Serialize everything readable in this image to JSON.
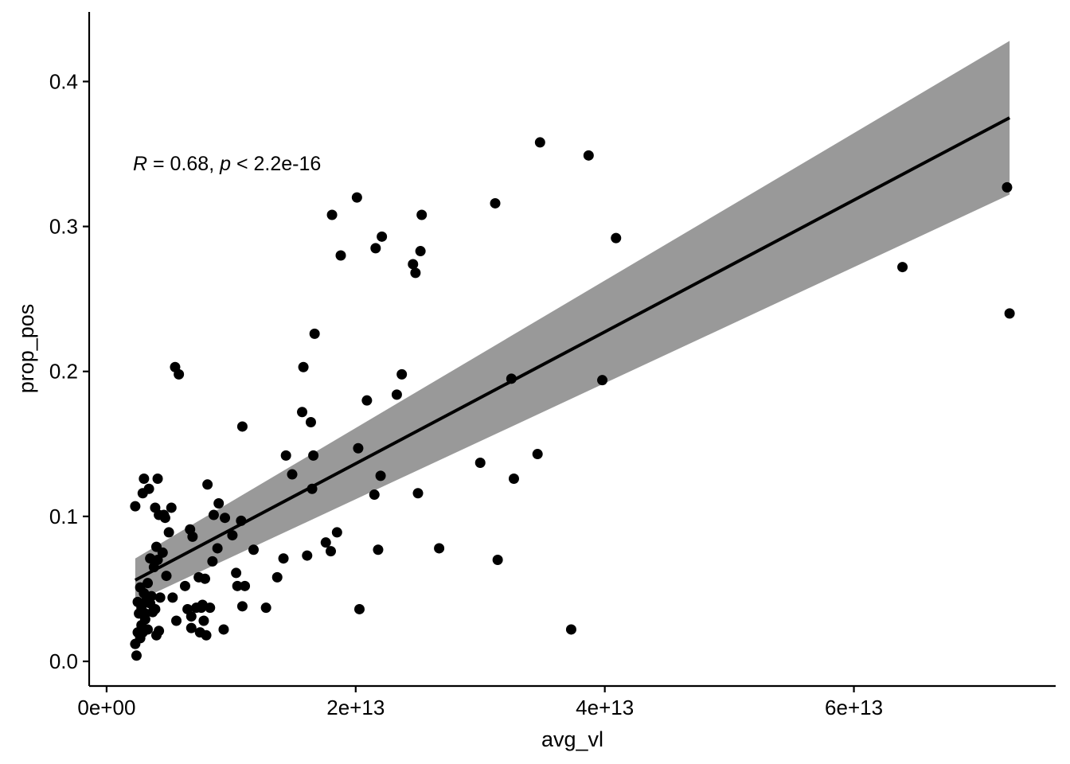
{
  "chart_data": {
    "type": "scatter",
    "xlabel": "avg_vl",
    "ylabel": "prop_pos",
    "xlim": [
      -1400000000000.0,
      76200000000000.0
    ],
    "ylim": [
      -0.017,
      0.448
    ],
    "x_ticks": [
      0,
      20000000000000.0,
      40000000000000.0,
      60000000000000.0
    ],
    "x_tick_labels": [
      "0e+00",
      "2e+13",
      "4e+13",
      "6e+13"
    ],
    "y_ticks": [
      0.0,
      0.1,
      0.2,
      0.3,
      0.4
    ],
    "y_tick_labels": [
      "0.0",
      "0.1",
      "0.2",
      "0.3",
      "0.4"
    ],
    "annotation": {
      "r_symbol": "R",
      "r_text": " = 0.68, ",
      "p_symbol": "p",
      "p_text": " < 2.2e-16"
    },
    "regression": {
      "line": [
        [
          2300000000000.0,
          0.056
        ],
        [
          72500000000000.0,
          0.375
        ]
      ],
      "ci": {
        "x": [
          2300000000000.0,
          72500000000000.0
        ],
        "upper": [
          0.071,
          0.428
        ],
        "lower": [
          0.041,
          0.322
        ]
      }
    },
    "points": [
      [
        2300000000000.0,
        0.107
      ],
      [
        2300000000000.0,
        0.012
      ],
      [
        2400000000000.0,
        0.004
      ],
      [
        2500000000000.0,
        0.02
      ],
      [
        2500000000000.0,
        0.041
      ],
      [
        2600000000000.0,
        0.033
      ],
      [
        2700000000000.0,
        0.051
      ],
      [
        2700000000000.0,
        0.016
      ],
      [
        2800000000000.0,
        0.025
      ],
      [
        2800000000000.0,
        0.037
      ],
      [
        2900000000000.0,
        0.116
      ],
      [
        2900000000000.0,
        0.02
      ],
      [
        3000000000000.0,
        0.047
      ],
      [
        3000000000000.0,
        0.126
      ],
      [
        3100000000000.0,
        0.033
      ],
      [
        3100000000000.0,
        0.029
      ],
      [
        3200000000000.0,
        0.042
      ],
      [
        3300000000000.0,
        0.022
      ],
      [
        3300000000000.0,
        0.054
      ],
      [
        3400000000000.0,
        0.119
      ],
      [
        3500000000000.0,
        0.071
      ],
      [
        3500000000000.0,
        0.04
      ],
      [
        3600000000000.0,
        0.045
      ],
      [
        3700000000000.0,
        0.034
      ],
      [
        3800000000000.0,
        0.065
      ],
      [
        3900000000000.0,
        0.106
      ],
      [
        3900000000000.0,
        0.036
      ],
      [
        4000000000000.0,
        0.018
      ],
      [
        4000000000000.0,
        0.079
      ],
      [
        4100000000000.0,
        0.126
      ],
      [
        4100000000000.0,
        0.07
      ],
      [
        4200000000000.0,
        0.101
      ],
      [
        4200000000000.0,
        0.021
      ],
      [
        4300000000000.0,
        0.044
      ],
      [
        4500000000000.0,
        0.075
      ],
      [
        4600000000000.0,
        0.101
      ],
      [
        4700000000000.0,
        0.099
      ],
      [
        4800000000000.0,
        0.059
      ],
      [
        5000000000000.0,
        0.089
      ],
      [
        5200000000000.0,
        0.106
      ],
      [
        5300000000000.0,
        0.044
      ],
      [
        5500000000000.0,
        0.203
      ],
      [
        5600000000000.0,
        0.028
      ],
      [
        5800000000000.0,
        0.198
      ],
      [
        6300000000000.0,
        0.052
      ],
      [
        6500000000000.0,
        0.036
      ],
      [
        6700000000000.0,
        0.091
      ],
      [
        6800000000000.0,
        0.023
      ],
      [
        6800000000000.0,
        0.031
      ],
      [
        6900000000000.0,
        0.086
      ],
      [
        7200000000000.0,
        0.037
      ],
      [
        7400000000000.0,
        0.058
      ],
      [
        7500000000000.0,
        0.02
      ],
      [
        7600000000000.0,
        0.037
      ],
      [
        7700000000000.0,
        0.039
      ],
      [
        7800000000000.0,
        0.028
      ],
      [
        7900000000000.0,
        0.057
      ],
      [
        8000000000000.0,
        0.018
      ],
      [
        8100000000000.0,
        0.122
      ],
      [
        8300000000000.0,
        0.037
      ],
      [
        8500000000000.0,
        0.069
      ],
      [
        8600000000000.0,
        0.101
      ],
      [
        8900000000000.0,
        0.078
      ],
      [
        9000000000000.0,
        0.109
      ],
      [
        9400000000000.0,
        0.022
      ],
      [
        9500000000000.0,
        0.099
      ],
      [
        10100000000000.0,
        0.087
      ],
      [
        10400000000000.0,
        0.061
      ],
      [
        10500000000000.0,
        0.052
      ],
      [
        10800000000000.0,
        0.097
      ],
      [
        10900000000000.0,
        0.162
      ],
      [
        10900000000000.0,
        0.038
      ],
      [
        11100000000000.0,
        0.052
      ],
      [
        11800000000000.0,
        0.077
      ],
      [
        12800000000000.0,
        0.037
      ],
      [
        13700000000000.0,
        0.058
      ],
      [
        14200000000000.0,
        0.071
      ],
      [
        14400000000000.0,
        0.142
      ],
      [
        14900000000000.0,
        0.129
      ],
      [
        15700000000000.0,
        0.172
      ],
      [
        15800000000000.0,
        0.203
      ],
      [
        16100000000000.0,
        0.073
      ],
      [
        16400000000000.0,
        0.165
      ],
      [
        16500000000000.0,
        0.119
      ],
      [
        16600000000000.0,
        0.142
      ],
      [
        16700000000000.0,
        0.226
      ],
      [
        17600000000000.0,
        0.082
      ],
      [
        18000000000000.0,
        0.076
      ],
      [
        18100000000000.0,
        0.308
      ],
      [
        18500000000000.0,
        0.089
      ],
      [
        18800000000000.0,
        0.28
      ],
      [
        20100000000000.0,
        0.32
      ],
      [
        20200000000000.0,
        0.147
      ],
      [
        20300000000000.0,
        0.036
      ],
      [
        20900000000000.0,
        0.18
      ],
      [
        21500000000000.0,
        0.115
      ],
      [
        21600000000000.0,
        0.285
      ],
      [
        21800000000000.0,
        0.077
      ],
      [
        22000000000000.0,
        0.128
      ],
      [
        22100000000000.0,
        0.293
      ],
      [
        23300000000000.0,
        0.184
      ],
      [
        23700000000000.0,
        0.198
      ],
      [
        24600000000000.0,
        0.274
      ],
      [
        24800000000000.0,
        0.268
      ],
      [
        25000000000000.0,
        0.116
      ],
      [
        25200000000000.0,
        0.283
      ],
      [
        25300000000000.0,
        0.308
      ],
      [
        26700000000000.0,
        0.078
      ],
      [
        30000000000000.0,
        0.137
      ],
      [
        31200000000000.0,
        0.316
      ],
      [
        31400000000000.0,
        0.07
      ],
      [
        32500000000000.0,
        0.195
      ],
      [
        32700000000000.0,
        0.126
      ],
      [
        34600000000000.0,
        0.143
      ],
      [
        34800000000000.0,
        0.358
      ],
      [
        37300000000000.0,
        0.022
      ],
      [
        38700000000000.0,
        0.349
      ],
      [
        39800000000000.0,
        0.194
      ],
      [
        40900000000000.0,
        0.292
      ],
      [
        63900000000000.0,
        0.272
      ],
      [
        72300000000000.0,
        0.327
      ],
      [
        72500000000000.0,
        0.24
      ]
    ]
  }
}
